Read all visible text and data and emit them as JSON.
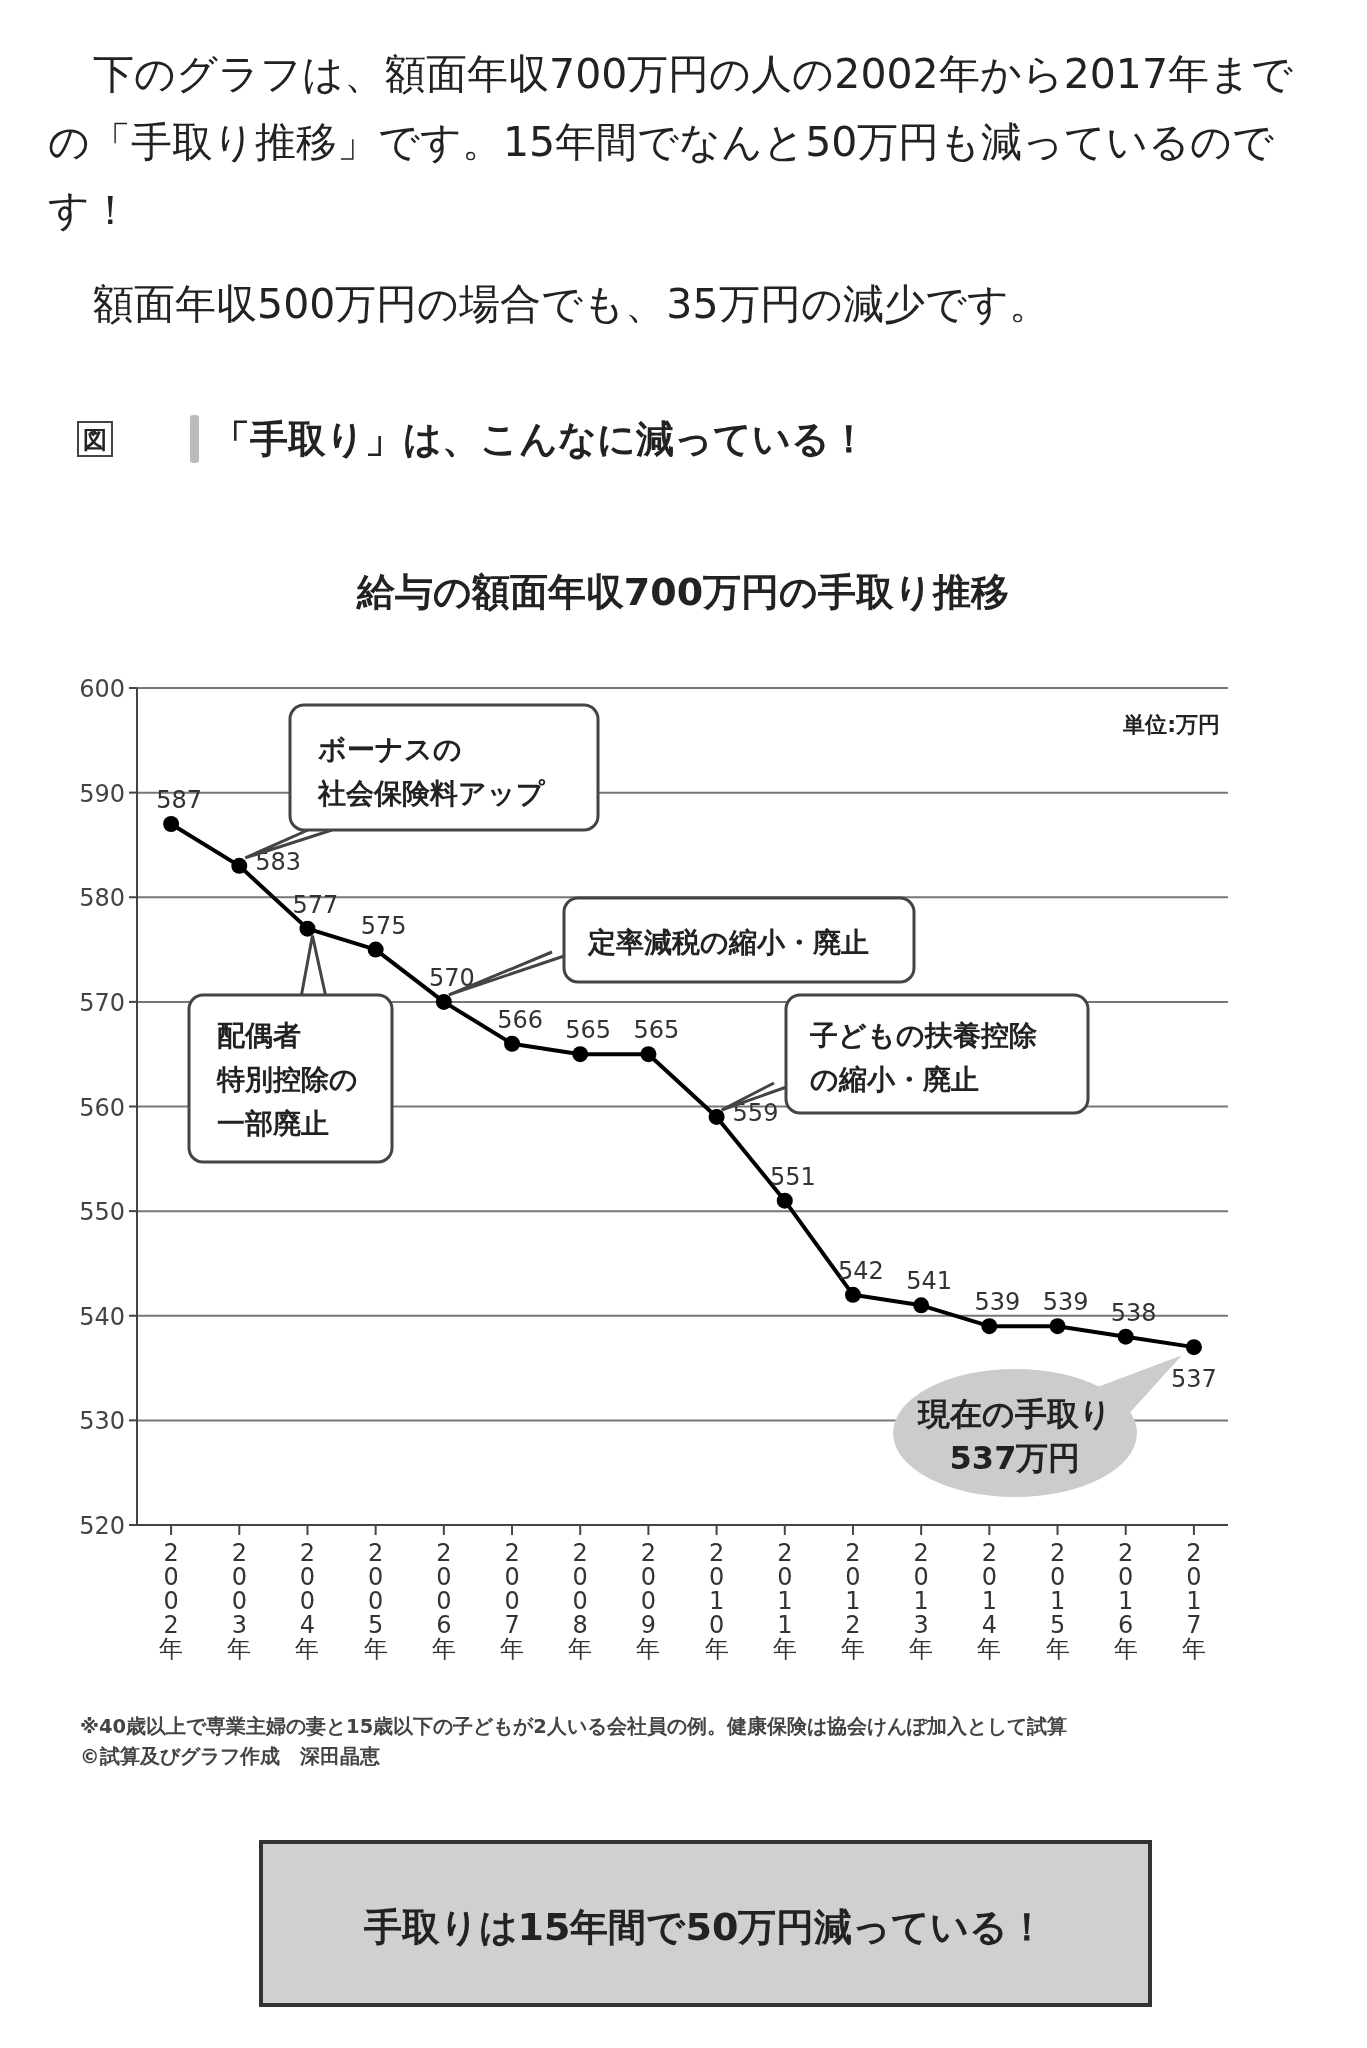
{
  "chart_data": {
    "type": "line",
    "title": "給与の額面年収700万円の手取り推移",
    "subtitle": "「手取り」は、こんなに減っている！",
    "categories": [
      "2002年",
      "2003年",
      "2004年",
      "2005年",
      "2006年",
      "2007年",
      "2008年",
      "2009年",
      "2010年",
      "2011年",
      "2012年",
      "2013年",
      "2014年",
      "2015年",
      "2016年",
      "2017年"
    ],
    "values": [
      587,
      583,
      577,
      575,
      570,
      566,
      565,
      565,
      559,
      551,
      542,
      541,
      539,
      539,
      538,
      537
    ],
    "color": "#000000",
    "ylim": [
      520,
      600
    ],
    "yticks": [
      520,
      530,
      540,
      550,
      560,
      570,
      580,
      590,
      600
    ],
    "grid": "y",
    "marker": "circle",
    "line_style": "solid",
    "data_labels": true,
    "annotations": [
      "下のグラフは、額面年収700万円の人の2002年から2017年までの「手取り推移」です。15年間でなんと50万円も減っているのです！",
      "額面年収500万円の場合でも、35万円の減少です。",
      "図",
      {
        "text": "配偶者特別控除の一部廃止",
        "x": "2004年",
        "y": 577
      },
      {
        "text": "定率減税の縮小・廃止",
        "x": "2006年",
        "y": 570
      },
      {
        "text": "子どもの扶養控除の縮小・廃止",
        "x": "2010年",
        "y": 559
      },
      {
        "text": "現在の手取り537万円",
        "x": "2017年",
        "y": 537
      },
      "単位:万円",
      "※40歳以上で専業主婦の妻と15歳以下の子どもが2人いる会社員の例。健康保険は協会けんぽ加入として試算",
      "©試算及びグラフ作成　深田晶恵",
      "手取りは15年間で50万円減っている！",
      "ボーナスの社会保険料アップ"
    ]
  }
}
